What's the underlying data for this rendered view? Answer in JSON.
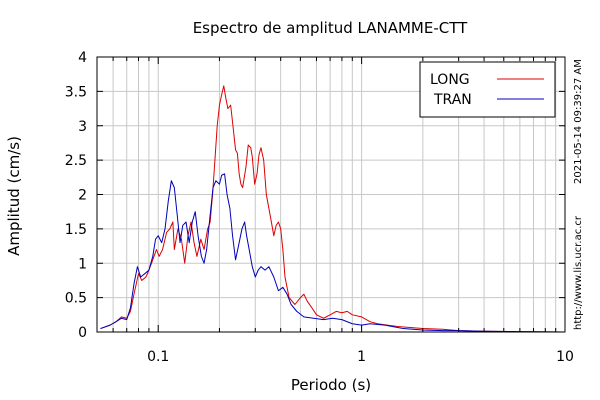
{
  "side_labels": {
    "timestamp": "2021-05-14 09:39:27 AM",
    "url": "http://www.lis.ucr.ac.cr"
  },
  "chart_data": {
    "type": "line",
    "title": "Espectro de amplitud LANAMME-CTT",
    "xlabel": "Periodo (s)",
    "ylabel": "Amplitud (cm/s)",
    "xscale": "log",
    "xlim": [
      0.05,
      10
    ],
    "ylim": [
      0,
      4
    ],
    "xticks": [
      {
        "value": 0.1,
        "label": "0.1"
      },
      {
        "value": 1,
        "label": "1"
      },
      {
        "value": 10,
        "label": "10"
      }
    ],
    "yticks": [
      {
        "value": 0,
        "label": "0"
      },
      {
        "value": 0.5,
        "label": "0.5"
      },
      {
        "value": 1,
        "label": "1"
      },
      {
        "value": 1.5,
        "label": "1.5"
      },
      {
        "value": 2,
        "label": "2"
      },
      {
        "value": 2.5,
        "label": "2.5"
      },
      {
        "value": 3,
        "label": "3"
      },
      {
        "value": 3.5,
        "label": "3.5"
      },
      {
        "value": 4,
        "label": "4"
      }
    ],
    "grid": true,
    "legend_position": "top-right",
    "series": [
      {
        "name": "LONG",
        "color": "#dd0000",
        "points": [
          [
            0.052,
            0.05
          ],
          [
            0.058,
            0.1
          ],
          [
            0.062,
            0.15
          ],
          [
            0.066,
            0.22
          ],
          [
            0.07,
            0.2
          ],
          [
            0.073,
            0.3
          ],
          [
            0.076,
            0.55
          ],
          [
            0.08,
            0.85
          ],
          [
            0.083,
            0.75
          ],
          [
            0.087,
            0.8
          ],
          [
            0.09,
            0.9
          ],
          [
            0.094,
            1.05
          ],
          [
            0.098,
            1.2
          ],
          [
            0.101,
            1.1
          ],
          [
            0.105,
            1.2
          ],
          [
            0.11,
            1.45
          ],
          [
            0.114,
            1.5
          ],
          [
            0.118,
            1.6
          ],
          [
            0.12,
            1.2
          ],
          [
            0.125,
            1.5
          ],
          [
            0.13,
            1.35
          ],
          [
            0.135,
            1.0
          ],
          [
            0.14,
            1.4
          ],
          [
            0.145,
            1.6
          ],
          [
            0.15,
            1.3
          ],
          [
            0.155,
            1.1
          ],
          [
            0.162,
            1.35
          ],
          [
            0.168,
            1.2
          ],
          [
            0.175,
            1.5
          ],
          [
            0.18,
            1.6
          ],
          [
            0.185,
            2.0
          ],
          [
            0.19,
            2.5
          ],
          [
            0.195,
            3.0
          ],
          [
            0.2,
            3.3
          ],
          [
            0.205,
            3.45
          ],
          [
            0.21,
            3.58
          ],
          [
            0.215,
            3.4
          ],
          [
            0.22,
            3.25
          ],
          [
            0.227,
            3.3
          ],
          [
            0.233,
            3.0
          ],
          [
            0.24,
            2.65
          ],
          [
            0.245,
            2.6
          ],
          [
            0.25,
            2.3
          ],
          [
            0.255,
            2.15
          ],
          [
            0.26,
            2.1
          ],
          [
            0.265,
            2.25
          ],
          [
            0.27,
            2.4
          ],
          [
            0.277,
            2.72
          ],
          [
            0.285,
            2.68
          ],
          [
            0.29,
            2.55
          ],
          [
            0.298,
            2.15
          ],
          [
            0.306,
            2.3
          ],
          [
            0.313,
            2.58
          ],
          [
            0.32,
            2.68
          ],
          [
            0.33,
            2.5
          ],
          [
            0.34,
            2.0
          ],
          [
            0.35,
            1.8
          ],
          [
            0.36,
            1.6
          ],
          [
            0.37,
            1.4
          ],
          [
            0.38,
            1.55
          ],
          [
            0.39,
            1.6
          ],
          [
            0.4,
            1.5
          ],
          [
            0.41,
            1.2
          ],
          [
            0.42,
            0.8
          ],
          [
            0.44,
            0.5
          ],
          [
            0.47,
            0.4
          ],
          [
            0.5,
            0.5
          ],
          [
            0.52,
            0.55
          ],
          [
            0.54,
            0.45
          ],
          [
            0.57,
            0.35
          ],
          [
            0.6,
            0.25
          ],
          [
            0.65,
            0.2
          ],
          [
            0.7,
            0.25
          ],
          [
            0.75,
            0.3
          ],
          [
            0.8,
            0.28
          ],
          [
            0.85,
            0.3
          ],
          [
            0.9,
            0.25
          ],
          [
            1.0,
            0.22
          ],
          [
            1.1,
            0.15
          ],
          [
            1.2,
            0.12
          ],
          [
            1.5,
            0.08
          ],
          [
            2.0,
            0.05
          ],
          [
            2.5,
            0.04
          ],
          [
            3.0,
            0.02
          ],
          [
            4.0,
            0.01
          ],
          [
            6.0,
            0.005
          ],
          [
            10.0,
            0.0
          ]
        ]
      },
      {
        "name": "TRAN",
        "color": "#0000bb",
        "points": [
          [
            0.052,
            0.05
          ],
          [
            0.058,
            0.1
          ],
          [
            0.062,
            0.15
          ],
          [
            0.066,
            0.2
          ],
          [
            0.07,
            0.18
          ],
          [
            0.073,
            0.35
          ],
          [
            0.076,
            0.7
          ],
          [
            0.079,
            0.95
          ],
          [
            0.082,
            0.8
          ],
          [
            0.086,
            0.85
          ],
          [
            0.09,
            0.9
          ],
          [
            0.094,
            1.1
          ],
          [
            0.097,
            1.35
          ],
          [
            0.1,
            1.4
          ],
          [
            0.104,
            1.3
          ],
          [
            0.108,
            1.5
          ],
          [
            0.112,
            1.9
          ],
          [
            0.116,
            2.2
          ],
          [
            0.12,
            2.1
          ],
          [
            0.124,
            1.7
          ],
          [
            0.128,
            1.3
          ],
          [
            0.132,
            1.55
          ],
          [
            0.137,
            1.6
          ],
          [
            0.142,
            1.3
          ],
          [
            0.147,
            1.6
          ],
          [
            0.152,
            1.75
          ],
          [
            0.157,
            1.4
          ],
          [
            0.163,
            1.1
          ],
          [
            0.168,
            1.0
          ],
          [
            0.173,
            1.2
          ],
          [
            0.18,
            1.7
          ],
          [
            0.186,
            2.1
          ],
          [
            0.192,
            2.2
          ],
          [
            0.2,
            2.15
          ],
          [
            0.205,
            2.28
          ],
          [
            0.212,
            2.3
          ],
          [
            0.218,
            2.0
          ],
          [
            0.225,
            1.8
          ],
          [
            0.232,
            1.4
          ],
          [
            0.24,
            1.05
          ],
          [
            0.25,
            1.3
          ],
          [
            0.258,
            1.5
          ],
          [
            0.266,
            1.6
          ],
          [
            0.272,
            1.4
          ],
          [
            0.28,
            1.2
          ],
          [
            0.29,
            0.95
          ],
          [
            0.3,
            0.8
          ],
          [
            0.31,
            0.9
          ],
          [
            0.32,
            0.95
          ],
          [
            0.335,
            0.9
          ],
          [
            0.35,
            0.95
          ],
          [
            0.37,
            0.8
          ],
          [
            0.39,
            0.6
          ],
          [
            0.41,
            0.65
          ],
          [
            0.43,
            0.55
          ],
          [
            0.45,
            0.4
          ],
          [
            0.48,
            0.3
          ],
          [
            0.52,
            0.22
          ],
          [
            0.58,
            0.2
          ],
          [
            0.65,
            0.18
          ],
          [
            0.72,
            0.2
          ],
          [
            0.8,
            0.18
          ],
          [
            0.9,
            0.12
          ],
          [
            1.0,
            0.1
          ],
          [
            1.1,
            0.12
          ],
          [
            1.3,
            0.1
          ],
          [
            1.6,
            0.05
          ],
          [
            2.0,
            0.03
          ],
          [
            2.5,
            0.02
          ],
          [
            3.0,
            0.02
          ],
          [
            4.0,
            0.01
          ],
          [
            6.0,
            0.005
          ],
          [
            10.0,
            0.0
          ]
        ]
      }
    ]
  }
}
